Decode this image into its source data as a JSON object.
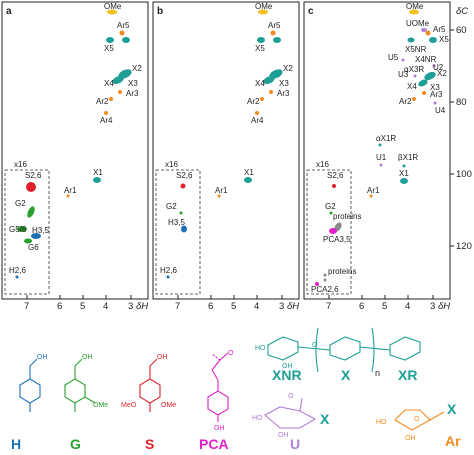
{
  "panels": [
    {
      "letter": "a",
      "inset_label": "x16",
      "xlabel": "δH",
      "x_ticks": [
        "7",
        "6",
        "5",
        "4",
        "3"
      ],
      "peaks": [
        {
          "label": "OMe",
          "color": "#f2c21b"
        },
        {
          "label": "Ar5",
          "color": "#f28c1e"
        },
        {
          "label": "X5",
          "color": "#1e9e96"
        },
        {
          "label": "X2",
          "color": "#1e9e96"
        },
        {
          "label": "X3",
          "color": "#1e9e96"
        },
        {
          "label": "X4",
          "color": "#1e9e96"
        },
        {
          "label": "Ar3",
          "color": "#f28c1e"
        },
        {
          "label": "Ar2",
          "color": "#f28c1e"
        },
        {
          "label": "Ar4",
          "color": "#f28c1e"
        },
        {
          "label": "Ar1",
          "color": "#f28c1e"
        },
        {
          "label": "X1",
          "color": "#1e9e96"
        },
        {
          "label": "S2,6",
          "color": "#e0212b"
        },
        {
          "label": "G2",
          "color": "#2aa12f"
        },
        {
          "label": "G5/6",
          "color": "#2aa12f"
        },
        {
          "label": "H3,5",
          "color": "#1c6fb8"
        },
        {
          "label": "G6",
          "color": "#2aa12f"
        },
        {
          "label": "H2,6",
          "color": "#1c6fb8"
        }
      ]
    },
    {
      "letter": "b",
      "inset_label": "x16",
      "xlabel": "δH",
      "x_ticks": [
        "7",
        "6",
        "5",
        "4",
        "3"
      ],
      "peaks": [
        {
          "label": "OMe",
          "color": "#f2c21b"
        },
        {
          "label": "Ar5",
          "color": "#f28c1e"
        },
        {
          "label": "X5",
          "color": "#1e9e96"
        },
        {
          "label": "X2",
          "color": "#1e9e96"
        },
        {
          "label": "X3",
          "color": "#1e9e96"
        },
        {
          "label": "X4",
          "color": "#1e9e96"
        },
        {
          "label": "Ar3",
          "color": "#f28c1e"
        },
        {
          "label": "Ar2",
          "color": "#f28c1e"
        },
        {
          "label": "Ar4",
          "color": "#f28c1e"
        },
        {
          "label": "Ar1",
          "color": "#f28c1e"
        },
        {
          "label": "X1",
          "color": "#1e9e96"
        },
        {
          "label": "S2,6",
          "color": "#e0212b"
        },
        {
          "label": "G2",
          "color": "#2aa12f"
        },
        {
          "label": "H3,5",
          "color": "#1c6fb8"
        },
        {
          "label": "H2,6",
          "color": "#1c6fb8"
        }
      ]
    },
    {
      "letter": "c",
      "inset_label": "x16",
      "xlabel": "δH",
      "x_ticks": [
        "7",
        "6",
        "5",
        "4",
        "3"
      ],
      "y_ticks": [
        "60",
        "80",
        "100",
        "120"
      ],
      "ylabel": "δC",
      "peaks": [
        {
          "label": "OMe",
          "color": "#f2c21b"
        },
        {
          "label": "UOMe",
          "color": "#b07fd6"
        },
        {
          "label": "Ar5",
          "color": "#f28c1e"
        },
        {
          "label": "X5",
          "color": "#1e9e96"
        },
        {
          "label": "X5NR",
          "color": "#1e9e96"
        },
        {
          "label": "X4NR",
          "color": "#1e9e96"
        },
        {
          "label": "U5",
          "color": "#b07fd6"
        },
        {
          "label": "αX3R",
          "color": "#1e9e96"
        },
        {
          "label": "U2",
          "color": "#b07fd6"
        },
        {
          "label": "X2",
          "color": "#1e9e96"
        },
        {
          "label": "U3",
          "color": "#b07fd6"
        },
        {
          "label": "X3",
          "color": "#1e9e96"
        },
        {
          "label": "X4",
          "color": "#1e9e96"
        },
        {
          "label": "Ar3",
          "color": "#f28c1e"
        },
        {
          "label": "Ar2",
          "color": "#f28c1e"
        },
        {
          "label": "U4",
          "color": "#b07fd6"
        },
        {
          "label": "αX1R",
          "color": "#1e9e96"
        },
        {
          "label": "U1",
          "color": "#b07fd6"
        },
        {
          "label": "βX1R",
          "color": "#1e9e96"
        },
        {
          "label": "X1",
          "color": "#1e9e96"
        },
        {
          "label": "Ar1",
          "color": "#f28c1e"
        },
        {
          "label": "S2,6",
          "color": "#e0212b"
        },
        {
          "label": "G2",
          "color": "#2aa12f"
        },
        {
          "label": "proteins",
          "color": "#888888"
        },
        {
          "label": "PCA3,5",
          "color": "#e020c8"
        },
        {
          "label": "proteins",
          "color": "#888888"
        },
        {
          "label": "PCA2,6",
          "color": "#e020c8"
        }
      ]
    }
  ],
  "structures": {
    "lignin": [
      {
        "name": "H",
        "color": "#1c6fb8",
        "oh": "OH",
        "ome": ""
      },
      {
        "name": "G",
        "color": "#2aa12f",
        "oh": "OH",
        "ome": "OMe"
      },
      {
        "name": "S",
        "color": "#e0212b",
        "oh": "OH",
        "ome": "OMe",
        "ome2": "MeO"
      },
      {
        "name": "PCA",
        "color": "#e020c8",
        "oh": "OH",
        "o": "O"
      }
    ],
    "xylan": {
      "color": "#1e9e96",
      "labels": [
        "XNR",
        "X",
        "XR",
        "n"
      ],
      "oh": "OH",
      "ho": "HO",
      "o": "O"
    },
    "uronic": {
      "name": "U",
      "x": "X",
      "color": "#b07fd6",
      "oh": "OH",
      "ho": "HO",
      "o": "O"
    },
    "arabinose": {
      "name": "Ar",
      "x": "X",
      "color": "#f28c1e",
      "oh": "OH",
      "ho": "HO",
      "o": "O"
    }
  },
  "colors": {
    "H": "#1c6fb8",
    "G": "#2aa12f",
    "S": "#e0212b",
    "PCA": "#e020c8",
    "X": "#1e9e96",
    "U": "#b07fd6",
    "Ar": "#f28c1e",
    "OMe": "#f2c21b",
    "proteins": "#888888"
  }
}
